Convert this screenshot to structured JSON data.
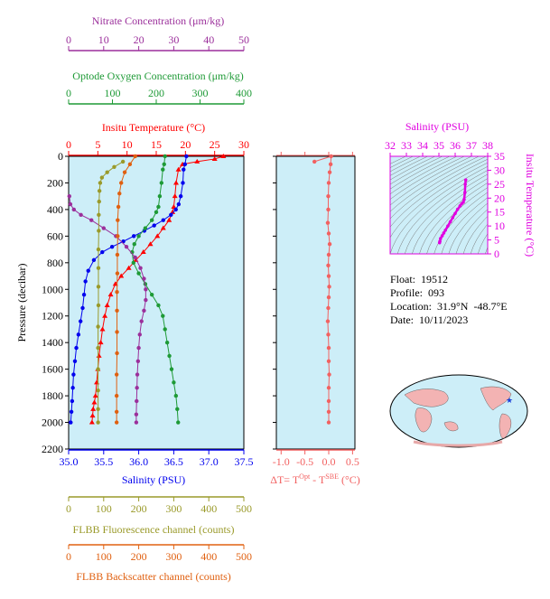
{
  "colors": {
    "nitrate": "#9b2f9b",
    "oxygen": "#1e9a36",
    "temperature": "#ff0000",
    "salinity": "#0000ee",
    "fluorescence": "#9a9a2a",
    "backscatter": "#e06010",
    "delta_t": "#f26161",
    "ts_axis": "#e000e0",
    "plot_bg": "#cdeef8"
  },
  "axes": {
    "nitrate": {
      "label": "Nitrate Concentration (μm/kg)",
      "ticks": [
        "0",
        "10",
        "20",
        "30",
        "40",
        "50"
      ]
    },
    "oxygen": {
      "label": "Optode Oxygen Concentration (μm/kg)",
      "ticks": [
        "0",
        "100",
        "200",
        "300",
        "400"
      ]
    },
    "temperature": {
      "label": "Insitu Temperature (°C)",
      "ticks": [
        "0",
        "5",
        "10",
        "15",
        "20",
        "25",
        "30"
      ]
    },
    "salinity": {
      "label": "Salinity (PSU)",
      "ticks": [
        "35.0",
        "35.5",
        "36.0",
        "36.5",
        "37.0",
        "37.5"
      ]
    },
    "pressure": {
      "label": "Pressure (decibar)",
      "ticks": [
        "0",
        "200",
        "400",
        "600",
        "800",
        "1000",
        "1200",
        "1400",
        "1600",
        "1800",
        "2000",
        "2200"
      ]
    },
    "fluorescence": {
      "label": "FLBB Fluorescence channel (counts)",
      "ticks": [
        "0",
        "100",
        "200",
        "300",
        "400",
        "500"
      ]
    },
    "backscatter": {
      "label": "FLBB Backscatter channel (counts)",
      "ticks": [
        "0",
        "100",
        "200",
        "300",
        "400",
        "500"
      ]
    },
    "delta_t": {
      "label_prefix": "ΔT= T",
      "label_sup1": "Opt",
      "label_mid": " - T",
      "label_sup2": "SBE",
      "label_suffix": " (°C)",
      "ticks": [
        "-1.0",
        "-0.5",
        "0.0",
        "0.5"
      ]
    },
    "ts_salinity": {
      "label": "Salinity (PSU)",
      "ticks": [
        "32",
        "33",
        "34",
        "35",
        "36",
        "37",
        "38"
      ]
    },
    "ts_temperature": {
      "label": "Insitu Temperature (°C)",
      "ticks": [
        "0",
        "5",
        "10",
        "15",
        "20",
        "25",
        "30",
        "35"
      ]
    }
  },
  "info": {
    "float": "Float:  19512",
    "profile": "Profile:  093",
    "location": "Location:  31.9°N  -48.7°E",
    "date": "Date:  10/11/2023"
  },
  "chart_data": [
    {
      "type": "line",
      "panel": "main profile",
      "y_axis": "Pressure (decibar)",
      "ylim": [
        2200,
        0
      ],
      "series": [
        {
          "name": "Insitu Temperature (°C)",
          "axis": "temperature",
          "xlim": [
            0,
            30
          ],
          "x": [
            26.5,
            25.0,
            22.0,
            19.5,
            18.8,
            18.4,
            18.2,
            18.0,
            17.8,
            17.2,
            16.2,
            15.2,
            14.0,
            12.8,
            11.5,
            10.3,
            9.0,
            8.0,
            7.2,
            6.6,
            6.2,
            5.8,
            5.5,
            5.2,
            5.0,
            4.8,
            4.6,
            4.4,
            4.2,
            4.1,
            4.0
          ],
          "y": [
            0,
            20,
            40,
            60,
            100,
            200,
            300,
            380,
            420,
            480,
            540,
            600,
            660,
            720,
            780,
            840,
            900,
            960,
            1040,
            1120,
            1200,
            1300,
            1400,
            1500,
            1600,
            1700,
            1800,
            1850,
            1900,
            1950,
            2000
          ]
        },
        {
          "name": "Salinity (PSU)",
          "axis": "salinity",
          "xlim": [
            35.0,
            37.5
          ],
          "x": [
            36.68,
            36.66,
            36.64,
            36.63,
            36.6,
            36.57,
            36.53,
            36.46,
            36.35,
            36.22,
            36.08,
            35.93,
            35.78,
            35.62,
            35.48,
            35.36,
            35.28,
            35.24,
            35.22,
            35.2,
            35.17,
            35.14,
            35.11,
            35.09,
            35.07,
            35.06,
            35.05,
            35.04,
            35.03
          ],
          "y": [
            0,
            60,
            100,
            200,
            300,
            360,
            400,
            440,
            480,
            520,
            560,
            600,
            640,
            680,
            720,
            780,
            860,
            940,
            1040,
            1140,
            1240,
            1340,
            1440,
            1540,
            1640,
            1740,
            1840,
            1920,
            2000
          ]
        },
        {
          "name": "Optode Oxygen Concentration (μm/kg)",
          "axis": "oxygen",
          "xlim": [
            0,
            400
          ],
          "x": [
            220,
            218,
            215,
            212,
            208,
            205,
            200,
            190,
            175,
            160,
            150,
            145,
            148,
            160,
            175,
            190,
            205,
            215,
            220,
            225,
            230,
            235,
            240,
            245,
            248,
            250
          ],
          "y": [
            0,
            60,
            100,
            200,
            300,
            380,
            420,
            480,
            540,
            600,
            660,
            720,
            800,
            880,
            960,
            1040,
            1120,
            1200,
            1300,
            1400,
            1500,
            1600,
            1700,
            1800,
            1900,
            2000
          ]
        },
        {
          "name": "Nitrate Concentration (μm/kg)",
          "axis": "nitrate",
          "xlim": [
            0,
            50
          ],
          "x": [
            0.2,
            0.5,
            1.5,
            3.5,
            6.5,
            10.0,
            13.5,
            16.5,
            19.0,
            20.5,
            21.5,
            22.0,
            22.0,
            21.5,
            20.8,
            20.3,
            20.0,
            19.8,
            19.6,
            19.5,
            19.4,
            19.3,
            19.3
          ],
          "y": [
            300,
            360,
            400,
            440,
            480,
            540,
            600,
            680,
            760,
            840,
            920,
            1000,
            1080,
            1160,
            1240,
            1340,
            1440,
            1540,
            1640,
            1740,
            1840,
            1940,
            2000
          ]
        },
        {
          "name": "FLBB Fluorescence channel (counts)",
          "axis": "fluorescence",
          "xlim": [
            0,
            500
          ],
          "x": [
            155,
            130,
            110,
            95,
            90,
            88,
            87,
            86,
            86,
            85,
            85,
            85,
            85,
            84,
            84,
            84,
            84,
            84,
            84
          ],
          "y": [
            40,
            80,
            120,
            160,
            200,
            260,
            340,
            440,
            560,
            700,
            840,
            980,
            1120,
            1280,
            1440,
            1600,
            1760,
            1900,
            2000
          ]
        },
        {
          "name": "FLBB Backscatter channel (counts)",
          "axis": "backscatter",
          "xlim": [
            0,
            500
          ],
          "x": [
            190,
            175,
            160,
            150,
            145,
            142,
            140,
            140,
            139,
            139,
            138,
            138,
            138,
            138,
            137,
            137,
            137,
            137
          ],
          "y": [
            0,
            60,
            120,
            200,
            280,
            380,
            480,
            600,
            740,
            880,
            1020,
            1160,
            1320,
            1480,
            1640,
            1800,
            1920,
            2000
          ]
        }
      ]
    },
    {
      "type": "line",
      "panel": "delta-t",
      "series": [
        {
          "name": "ΔT= T^Opt - T^SBE (°C)",
          "xlim": [
            -1.1,
            0.55
          ],
          "ylim": [
            2200,
            0
          ],
          "x": [
            -0.3,
            0.05,
            0.04,
            0.02,
            0.0,
            -0.01,
            -0.01,
            -0.02,
            0.0,
            0.02,
            0.0,
            -0.01,
            0.0,
            0.01,
            0.0,
            -0.01,
            -0.02,
            -0.01,
            0.0,
            0.0,
            0.01,
            0.0,
            0.0,
            0.0,
            0.0
          ],
          "y": [
            40,
            0,
            60,
            120,
            200,
            300,
            400,
            500,
            580,
            660,
            740,
            820,
            900,
            980,
            1060,
            1140,
            1240,
            1340,
            1440,
            1540,
            1640,
            1740,
            1840,
            1920,
            2000
          ]
        }
      ]
    },
    {
      "type": "scatter",
      "panel": "T-S diagram",
      "xlim": [
        32,
        38
      ],
      "ylim": [
        0,
        35
      ],
      "series": [
        {
          "name": "Salinity (PSU) vs Insitu Temperature (°C)",
          "x": [
            36.65,
            36.62,
            36.6,
            36.55,
            36.5,
            36.4,
            36.3,
            36.15,
            36.0,
            35.85,
            35.7,
            35.55,
            35.4,
            35.3,
            35.2,
            35.1,
            35.06,
            35.04
          ],
          "y": [
            26.5,
            25.0,
            22.0,
            19.5,
            18.5,
            18.0,
            17.2,
            16.0,
            14.5,
            13.0,
            11.5,
            10.0,
            8.5,
            7.5,
            6.5,
            5.5,
            4.5,
            4.0
          ]
        }
      ]
    }
  ]
}
